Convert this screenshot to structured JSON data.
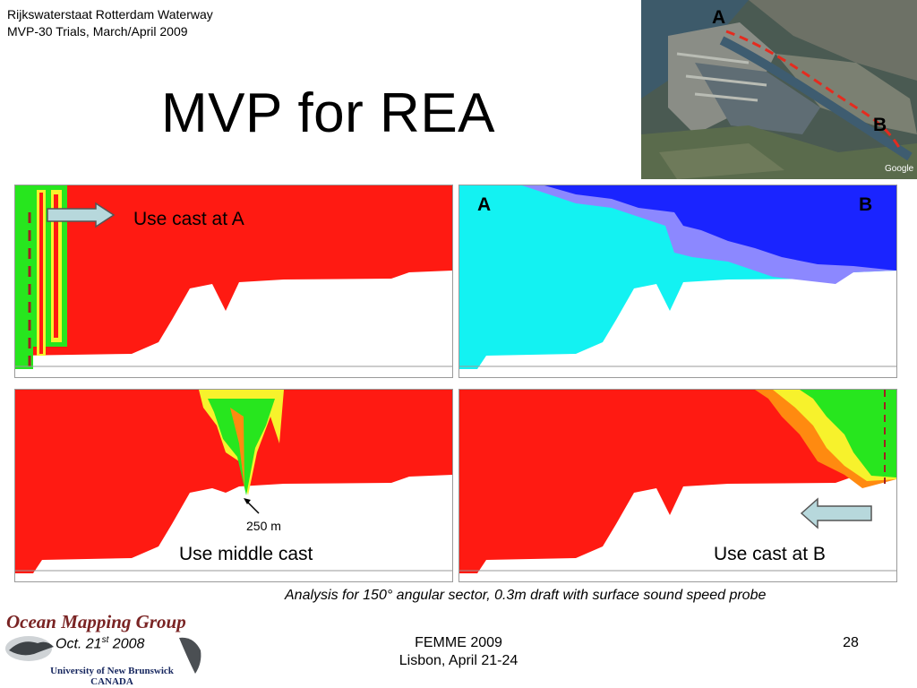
{
  "header": {
    "line1": "Rijkswaterstaat Rotterdam Waterway",
    "line2": "MVP-30 Trials, March/April 2009"
  },
  "slide": {
    "title": "MVP for REA"
  },
  "map": {
    "point_a": "A",
    "point_b": "B",
    "watermark": "Google",
    "route_color": "#e52b1f"
  },
  "panels": {
    "top_left": {
      "label": "Use cast at A"
    },
    "top_right": {
      "label_a": "A",
      "label_b": "B"
    },
    "bottom_left": {
      "label": "Use middle cast",
      "annotation": "250 m"
    },
    "bottom_right": {
      "label": "Use cast at B"
    }
  },
  "colors": {
    "red": "#ff1a12",
    "green": "#27e61e",
    "yellow": "#f7f22c",
    "orange": "#ff8a10",
    "cyan": "#13f2f2",
    "blue": "#1a24ff",
    "lavender": "#8c88ff",
    "arrow_fill": "#b7d8dc"
  },
  "caption": "Analysis for 150° angular sector, 0.3m draft with surface sound speed probe",
  "footer": {
    "date_prefix": "Oct. 21",
    "date_sup": "st",
    "date_suffix": " 2008",
    "event_line1": "FEMME 2009",
    "event_line2": "Lisbon, April 21-24",
    "page_number": "28"
  },
  "logo": {
    "name": "Ocean Mapping Group",
    "university": "University of New Brunswick",
    "country": "CANADA"
  }
}
